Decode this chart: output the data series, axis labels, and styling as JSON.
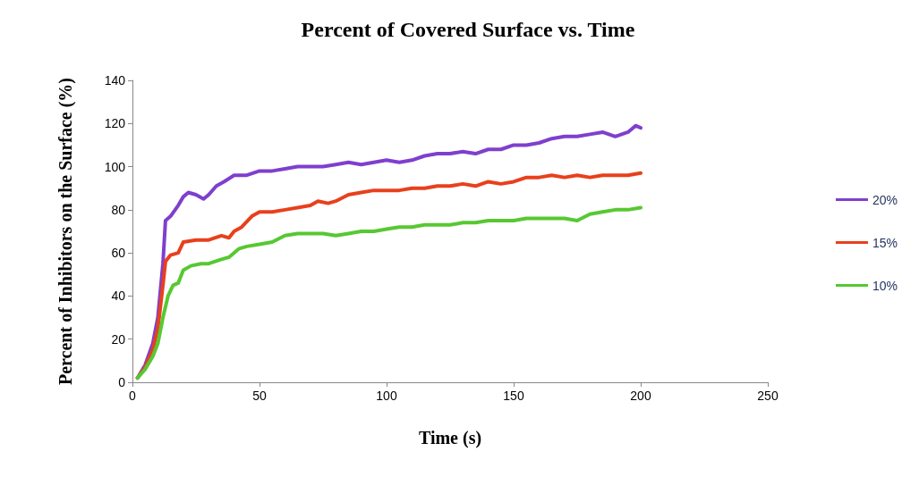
{
  "chart_data": {
    "type": "line",
    "title": "Percent of Covered Surface vs. Time",
    "xlabel": "Time (s)",
    "ylabel": "Percent of Inhibitors on the Surface (%)",
    "xlim": [
      0,
      250
    ],
    "xticks": [
      0,
      50,
      100,
      150,
      200,
      250
    ],
    "ylim": [
      0,
      140
    ],
    "yticks": [
      0,
      20,
      40,
      60,
      80,
      100,
      120,
      140
    ],
    "grid": false,
    "legend": "right",
    "marker": "none",
    "line_style": "solid",
    "series": [
      {
        "name": "20%",
        "color": "#7f3fce",
        "x": [
          2,
          5,
          8,
          10,
          12,
          13,
          15,
          18,
          20,
          22,
          25,
          28,
          30,
          33,
          36,
          40,
          45,
          50,
          55,
          60,
          65,
          70,
          75,
          80,
          85,
          90,
          95,
          100,
          105,
          110,
          115,
          120,
          125,
          130,
          135,
          140,
          145,
          150,
          155,
          160,
          165,
          170,
          175,
          180,
          185,
          190,
          195,
          198,
          200
        ],
        "values": [
          2,
          8,
          18,
          30,
          55,
          75,
          77,
          82,
          86,
          88,
          87,
          85,
          87,
          91,
          93,
          96,
          96,
          98,
          98,
          99,
          100,
          100,
          100,
          101,
          102,
          101,
          102,
          103,
          102,
          103,
          105,
          106,
          106,
          107,
          106,
          108,
          108,
          110,
          110,
          111,
          113,
          114,
          114,
          115,
          116,
          114,
          116,
          119,
          118
        ]
      },
      {
        "name": "15%",
        "color": "#e8401c",
        "x": [
          2,
          5,
          8,
          10,
          12,
          13,
          15,
          18,
          20,
          25,
          30,
          35,
          38,
          40,
          43,
          47,
          50,
          55,
          60,
          65,
          70,
          73,
          77,
          80,
          85,
          90,
          95,
          100,
          105,
          110,
          115,
          120,
          125,
          130,
          135,
          140,
          145,
          150,
          155,
          160,
          165,
          170,
          175,
          180,
          185,
          190,
          195,
          200
        ],
        "values": [
          2,
          7,
          15,
          25,
          45,
          56,
          59,
          60,
          65,
          66,
          66,
          68,
          67,
          70,
          72,
          77,
          79,
          79,
          80,
          81,
          82,
          84,
          83,
          84,
          87,
          88,
          89,
          89,
          89,
          90,
          90,
          91,
          91,
          92,
          91,
          93,
          92,
          93,
          95,
          95,
          96,
          95,
          96,
          95,
          96,
          96,
          96,
          97
        ]
      },
      {
        "name": "10%",
        "color": "#57c832",
        "x": [
          2,
          5,
          8,
          10,
          12,
          14,
          16,
          18,
          20,
          23,
          27,
          30,
          35,
          38,
          42,
          45,
          50,
          55,
          60,
          65,
          70,
          75,
          80,
          85,
          90,
          95,
          100,
          105,
          110,
          115,
          120,
          125,
          130,
          135,
          140,
          145,
          150,
          155,
          160,
          165,
          170,
          175,
          180,
          185,
          190,
          195,
          200
        ],
        "values": [
          2,
          6,
          12,
          18,
          30,
          40,
          45,
          46,
          52,
          54,
          55,
          55,
          57,
          58,
          62,
          63,
          64,
          65,
          68,
          69,
          69,
          69,
          68,
          69,
          70,
          70,
          71,
          72,
          72,
          73,
          73,
          73,
          74,
          74,
          75,
          75,
          75,
          76,
          76,
          76,
          76,
          75,
          78,
          79,
          80,
          80,
          81
        ]
      }
    ]
  }
}
